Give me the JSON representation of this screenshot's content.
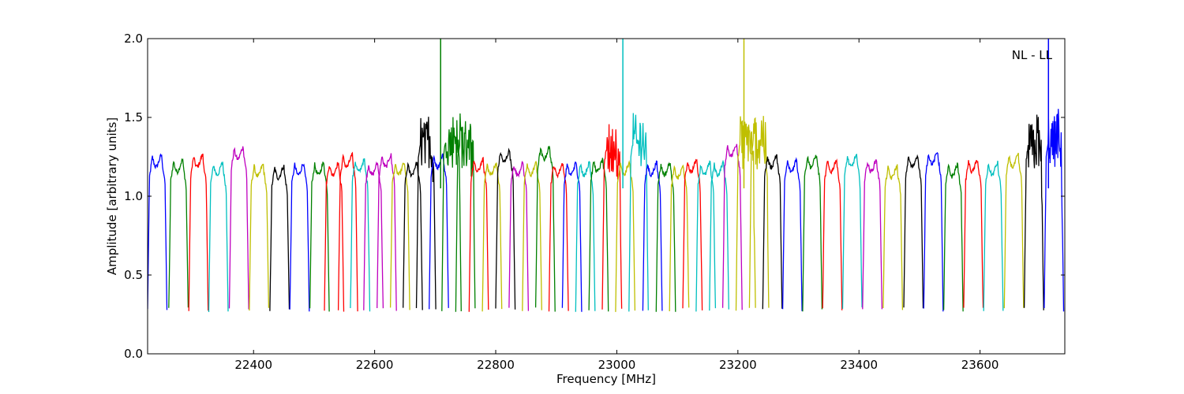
{
  "chart_data": {
    "type": "line",
    "title": "",
    "xlabel": "Frequency [MHz]",
    "ylabel": "Amplitude [arbitrary units]",
    "annotation": "NL - LL",
    "xlim": [
      22225,
      23740
    ],
    "ylim": [
      0,
      2.0
    ],
    "grid": false,
    "x_ticks": [
      22400,
      22600,
      22800,
      23000,
      23200,
      23400,
      23600
    ],
    "x_tick_labels": [
      "22400",
      "22600",
      "22800",
      "23000",
      "23200",
      "23400",
      "23600"
    ],
    "y_ticks": [
      0.0,
      0.5,
      1.0,
      1.5,
      2.0
    ],
    "y_tick_labels": [
      "0.0",
      "0.5",
      "1.0",
      "1.5",
      "2.0"
    ],
    "band_width_mhz": 32,
    "color_cycle": [
      "#0000ff",
      "#008000",
      "#ff0000",
      "#00bfbf",
      "#bf00bf",
      "#bfbf00",
      "#000000"
    ],
    "series": [
      {
        "start": 22225,
        "peak": 1.25,
        "color": "#0000ff"
      },
      {
        "start": 22260,
        "peak": 1.22,
        "color": "#008000"
      },
      {
        "start": 22293,
        "peak": 1.25,
        "color": "#ff0000"
      },
      {
        "start": 22326,
        "peak": 1.2,
        "color": "#00bfbf"
      },
      {
        "start": 22360,
        "peak": 1.3,
        "color": "#bf00bf"
      },
      {
        "start": 22393,
        "peak": 1.19,
        "color": "#bfbf00"
      },
      {
        "start": 22427,
        "peak": 1.18,
        "color": "#000000"
      },
      {
        "start": 22460,
        "peak": 1.2,
        "color": "#0000ff"
      },
      {
        "start": 22493,
        "peak": 1.2,
        "color": "#008000"
      },
      {
        "start": 22517,
        "peak": 1.2,
        "color": "#ff0000"
      },
      {
        "start": 22540,
        "peak": 1.25,
        "color": "#ff0000"
      },
      {
        "start": 22560,
        "peak": 1.22,
        "color": "#00bfbf"
      },
      {
        "start": 22582,
        "peak": 1.2,
        "color": "#bf00bf"
      },
      {
        "start": 22604,
        "peak": 1.25,
        "color": "#bf00bf"
      },
      {
        "start": 22626,
        "peak": 1.2,
        "color": "#bfbf00"
      },
      {
        "start": 22647,
        "peak": 1.2,
        "color": "#000000"
      },
      {
        "start": 22669,
        "peak": 1.37,
        "color": "#000000"
      },
      {
        "start": 22690,
        "peak": 1.25,
        "color": "#0000ff"
      },
      {
        "start": 22711,
        "peak": 1.4,
        "color": "#008000"
      },
      {
        "start": 22734,
        "peak": 1.38,
        "color": "#008000"
      },
      {
        "start": 22756,
        "peak": 1.22,
        "color": "#ff0000"
      },
      {
        "start": 22778,
        "peak": 1.2,
        "color": "#bfbf00"
      },
      {
        "start": 22800,
        "peak": 1.28,
        "color": "#000000"
      },
      {
        "start": 22822,
        "peak": 1.2,
        "color": "#bf00bf"
      },
      {
        "start": 22844,
        "peak": 1.2,
        "color": "#bfbf00"
      },
      {
        "start": 22866,
        "peak": 1.3,
        "color": "#008000"
      },
      {
        "start": 22888,
        "peak": 1.2,
        "color": "#ff0000"
      },
      {
        "start": 22910,
        "peak": 1.2,
        "color": "#0000ff"
      },
      {
        "start": 22932,
        "peak": 1.2,
        "color": "#00bfbf"
      },
      {
        "start": 22954,
        "peak": 1.22,
        "color": "#008000"
      },
      {
        "start": 22976,
        "peak": 1.34,
        "color": "#ff0000"
      },
      {
        "start": 22998,
        "peak": 1.2,
        "color": "#bfbf00"
      },
      {
        "start": 23020,
        "peak": 1.38,
        "color": "#00bfbf"
      },
      {
        "start": 23043,
        "peak": 1.2,
        "color": "#0000ff"
      },
      {
        "start": 23065,
        "peak": 1.2,
        "color": "#008000"
      },
      {
        "start": 23087,
        "peak": 1.18,
        "color": "#bfbf00"
      },
      {
        "start": 23109,
        "peak": 1.22,
        "color": "#ff0000"
      },
      {
        "start": 23131,
        "peak": 1.2,
        "color": "#00bfbf"
      },
      {
        "start": 23153,
        "peak": 1.2,
        "color": "#00bfbf"
      },
      {
        "start": 23175,
        "peak": 1.32,
        "color": "#bf00bf"
      },
      {
        "start": 23197,
        "peak": 1.38,
        "color": "#bfbf00"
      },
      {
        "start": 23219,
        "peak": 1.4,
        "color": "#bfbf00"
      },
      {
        "start": 23241,
        "peak": 1.25,
        "color": "#000000"
      },
      {
        "start": 23274,
        "peak": 1.22,
        "color": "#0000ff"
      },
      {
        "start": 23307,
        "peak": 1.25,
        "color": "#008000"
      },
      {
        "start": 23340,
        "peak": 1.22,
        "color": "#ff0000"
      },
      {
        "start": 23373,
        "peak": 1.25,
        "color": "#00bfbf"
      },
      {
        "start": 23406,
        "peak": 1.22,
        "color": "#bf00bf"
      },
      {
        "start": 23440,
        "peak": 1.18,
        "color": "#bfbf00"
      },
      {
        "start": 23474,
        "peak": 1.25,
        "color": "#000000"
      },
      {
        "start": 23507,
        "peak": 1.27,
        "color": "#0000ff"
      },
      {
        "start": 23540,
        "peak": 1.19,
        "color": "#008000"
      },
      {
        "start": 23573,
        "peak": 1.22,
        "color": "#ff0000"
      },
      {
        "start": 23606,
        "peak": 1.2,
        "color": "#00bfbf"
      },
      {
        "start": 23640,
        "peak": 1.25,
        "color": "#bfbf00"
      },
      {
        "start": 23673,
        "peak": 1.36,
        "color": "#000000"
      },
      {
        "start": 23706,
        "peak": 1.38,
        "color": "#0000ff"
      }
    ],
    "spikes": [
      {
        "x": 22709,
        "y": 2.0,
        "color": "#008000"
      },
      {
        "x": 23010,
        "y": 2.0,
        "color": "#00bfbf"
      },
      {
        "x": 23210,
        "y": 2.0,
        "color": "#bfbf00"
      },
      {
        "x": 23713,
        "y": 2.0,
        "color": "#0000ff"
      }
    ]
  }
}
